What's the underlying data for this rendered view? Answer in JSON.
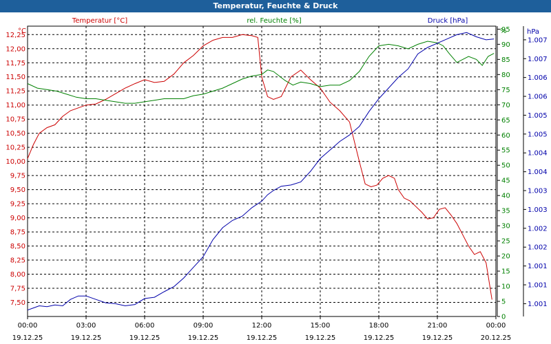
{
  "chart_data": {
    "type": "line",
    "title": "Temperatur, Feuchte & Druck",
    "x": {
      "times": [
        "00:00",
        "03:00",
        "06:00",
        "09:00",
        "12:00",
        "15:00",
        "18:00",
        "21:00",
        "00:00"
      ],
      "dates": [
        "19.12.25",
        "19.12.25",
        "19.12.25",
        "19.12.25",
        "19.12.25",
        "19.12.25",
        "19.12.25",
        "19.12.25",
        "20.12.25"
      ],
      "range_hours": [
        0,
        24
      ]
    },
    "axes": {
      "temperature": {
        "unit": "°C",
        "range": [
          7.25,
          12.4
        ],
        "ticks": [
          "7,50",
          "7,75",
          "8,00",
          "8,25",
          "8,50",
          "8,75",
          "9,00",
          "9,25",
          "9,50",
          "9,75",
          "10,00",
          "10,25",
          "10,50",
          "10,75",
          "11,00",
          "11,25",
          "11,50",
          "11,75",
          "12,00",
          "12,25"
        ],
        "color": "#cc0000"
      },
      "humidity": {
        "unit": "%",
        "range": [
          0,
          96
        ],
        "ticks": [
          "0",
          "5",
          "10",
          "15",
          "20",
          "25",
          "30",
          "35",
          "40",
          "45",
          "50",
          "55",
          "60",
          "65",
          "70",
          "75",
          "80",
          "85",
          "90",
          "95"
        ],
        "color": "#008000"
      },
      "pressure": {
        "unit": "hPa",
        "range": [
          1000.7,
          1007.5
        ],
        "ticks": [
          "1.001",
          "1.001",
          "1.001",
          "1.002",
          "1.002",
          "1.003",
          "1.003",
          "1.004",
          "1.004",
          "1.005",
          "1.005",
          "1.006",
          "1.006",
          "1.007",
          "1.007"
        ],
        "color": "#0000aa"
      }
    },
    "series": [
      {
        "name": "Temperatur [°C]",
        "axis": "temperature",
        "color": "#cc0000",
        "x": [
          0,
          0.3,
          0.6,
          1,
          1.4,
          1.8,
          2.2,
          2.6,
          3,
          3.5,
          4,
          4.5,
          5,
          5.5,
          6,
          6.5,
          7,
          7.5,
          8,
          8.5,
          9,
          9.5,
          10,
          10.5,
          11,
          11.5,
          11.8,
          12,
          12.3,
          12.6,
          13,
          13.5,
          14,
          14.5,
          15,
          15.5,
          16,
          16.5,
          17,
          17.3,
          17.6,
          17.9,
          18.2,
          18.5,
          18.8,
          19,
          19.3,
          19.6,
          19.9,
          20.2,
          20.5,
          20.8,
          21.1,
          21.4,
          21.7,
          22,
          22.3,
          22.6,
          22.9,
          23.2,
          23.5,
          23.8
        ],
        "values": [
          10.05,
          10.3,
          10.5,
          10.6,
          10.65,
          10.8,
          10.9,
          10.95,
          11.0,
          11.02,
          11.1,
          11.2,
          11.3,
          11.38,
          11.45,
          11.4,
          11.42,
          11.55,
          11.75,
          11.88,
          12.05,
          12.15,
          12.2,
          12.2,
          12.25,
          12.23,
          12.2,
          11.5,
          11.15,
          11.1,
          11.15,
          11.5,
          11.62,
          11.45,
          11.3,
          11.05,
          10.9,
          10.7,
          10.0,
          9.6,
          9.55,
          9.58,
          9.7,
          9.75,
          9.7,
          9.5,
          9.35,
          9.3,
          9.2,
          9.1,
          8.98,
          9.0,
          9.15,
          9.18,
          9.05,
          8.9,
          8.7,
          8.5,
          8.35,
          8.4,
          8.2,
          7.55
        ]
      },
      {
        "name": "rel. Feuchte [%]",
        "axis": "humidity",
        "color": "#008000",
        "x": [
          0,
          0.5,
          1,
          1.5,
          2,
          2.5,
          3,
          3.5,
          4,
          4.5,
          5,
          5.5,
          6,
          6.5,
          7,
          7.5,
          8,
          8.5,
          9,
          9.5,
          10,
          10.5,
          11,
          11.5,
          12,
          12.3,
          12.6,
          12.9,
          13.2,
          13.6,
          14,
          14.5,
          15,
          15.5,
          16,
          16.5,
          17,
          17.5,
          18,
          18.5,
          19,
          19.5,
          20,
          20.5,
          21,
          21.3,
          21.6,
          22,
          22.3,
          22.6,
          23,
          23.3,
          23.6,
          23.9
        ],
        "values": [
          77,
          75.5,
          75,
          74.5,
          73.5,
          72.5,
          72,
          72,
          71.5,
          71,
          70.5,
          70.5,
          71,
          71.5,
          72,
          72,
          72,
          73,
          73.5,
          74.5,
          75.5,
          77,
          78.5,
          79.5,
          80,
          81.5,
          81,
          79.5,
          78,
          76.5,
          77.5,
          77,
          76,
          76.5,
          76.5,
          78,
          81,
          86,
          89.5,
          90,
          89.5,
          88.5,
          90,
          91,
          90.5,
          89.5,
          87,
          84,
          85,
          86,
          85,
          83,
          86,
          87
        ]
      },
      {
        "name": "Druck [hPa]",
        "axis": "pressure",
        "color": "#0000aa",
        "x": [
          0,
          0.3,
          0.6,
          1,
          1.4,
          1.8,
          2.2,
          2.6,
          3,
          3.5,
          4,
          4.5,
          5,
          5.5,
          6,
          6.5,
          7,
          7.5,
          8,
          8.5,
          9,
          9.5,
          10,
          10.5,
          11,
          11.5,
          12,
          12.3,
          12.6,
          13,
          13.5,
          14,
          14.5,
          15,
          15.5,
          16,
          16.5,
          17,
          17.5,
          18,
          18.5,
          19,
          19.5,
          20,
          20.5,
          21,
          21.5,
          22,
          22.5,
          23,
          23.5,
          23.9
        ],
        "values": [
          1000.85,
          1000.9,
          1000.95,
          1000.93,
          1000.97,
          1000.95,
          1001.1,
          1001.18,
          1001.18,
          1001.1,
          1001.02,
          1001.0,
          1000.95,
          1000.98,
          1001.12,
          1001.15,
          1001.28,
          1001.4,
          1001.6,
          1001.85,
          1002.1,
          1002.5,
          1002.78,
          1002.95,
          1003.05,
          1003.25,
          1003.4,
          1003.55,
          1003.65,
          1003.75,
          1003.78,
          1003.85,
          1004.1,
          1004.4,
          1004.6,
          1004.8,
          1004.95,
          1005.15,
          1005.5,
          1005.8,
          1006.05,
          1006.3,
          1006.5,
          1006.85,
          1007.0,
          1007.1,
          1007.2,
          1007.3,
          1007.35,
          1007.25,
          1007.18,
          1007.2
        ]
      }
    ],
    "legend_position": "top",
    "grid": true
  }
}
